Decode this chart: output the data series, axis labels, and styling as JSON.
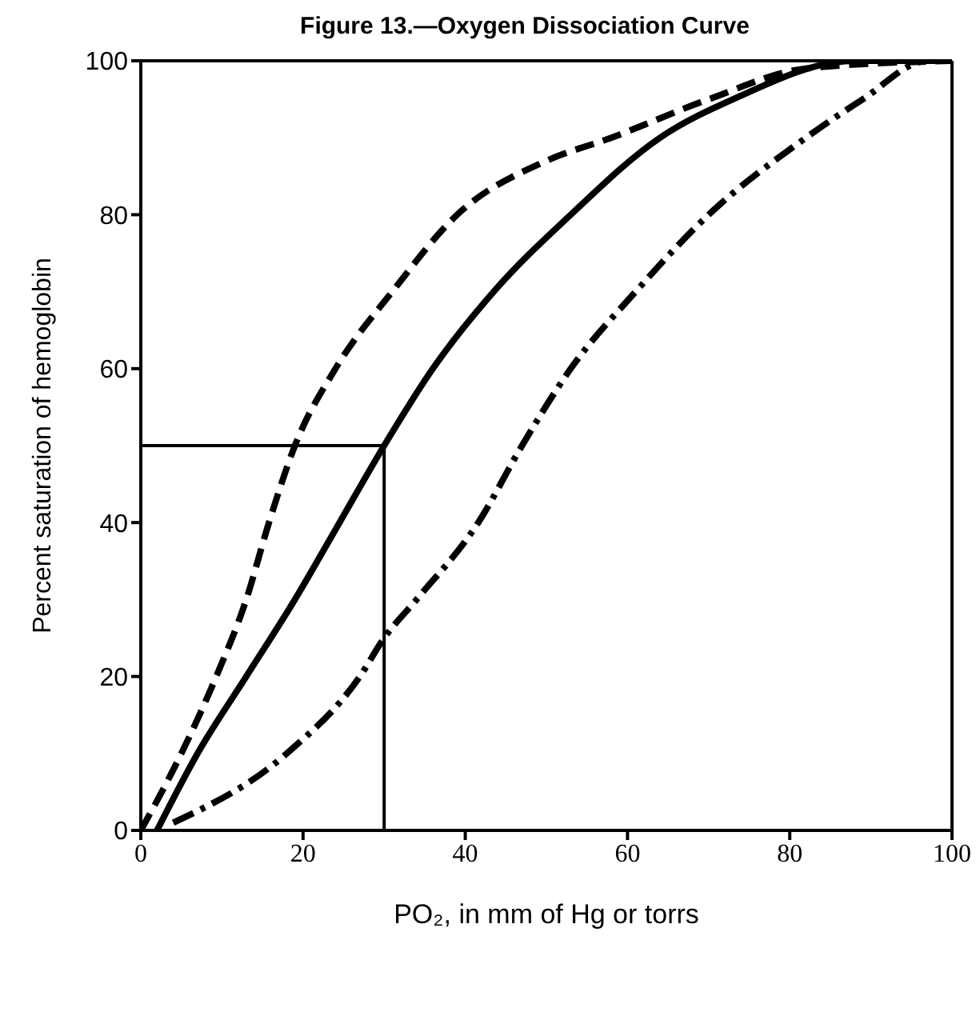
{
  "chart_data": {
    "type": "line",
    "title": "Figure 13.—Oxygen Dissociation Curve",
    "xlabel": "PO₂, in mm of Hg or torrs",
    "ylabel": "Percent saturation of hemoglobin",
    "xlim": [
      0,
      100
    ],
    "ylim": [
      0,
      100
    ],
    "xticks": [
      0,
      20,
      40,
      60,
      80,
      100
    ],
    "yticks": [
      0,
      20,
      40,
      60,
      80,
      100
    ],
    "marker": "none",
    "series": [
      {
        "color": "#000000",
        "line_style": "dashed",
        "x": [
          0,
          5,
          9.3,
          13,
          15.8,
          19,
          24,
          31,
          39,
          50,
          58,
          70,
          82,
          100
        ],
        "values": [
          0,
          10,
          20,
          30,
          40,
          50,
          60,
          70,
          80,
          87,
          90,
          95,
          99,
          100
        ]
      },
      {
        "color": "#000000",
        "line_style": "solid",
        "x": [
          2,
          7,
          13,
          19,
          24.5,
          30,
          36,
          43.5,
          53,
          64,
          73,
          88,
          100
        ],
        "values": [
          0,
          10,
          20,
          30,
          40,
          50,
          60,
          70,
          80,
          90,
          95,
          100,
          100
        ]
      },
      {
        "color": "#000000",
        "line_style": "dashdot",
        "x": [
          4,
          18,
          27,
          30,
          34,
          41.6,
          47,
          53,
          61,
          70,
          82,
          89,
          97,
          100
        ],
        "values": [
          1,
          10,
          20,
          25,
          30,
          40,
          50,
          60,
          70,
          80,
          90,
          95,
          100,
          100
        ]
      },
      {
        "color": "#000000",
        "line_style": "solid",
        "x": [
          0,
          30,
          30
        ],
        "values": [
          50,
          50,
          0
        ]
      }
    ]
  }
}
